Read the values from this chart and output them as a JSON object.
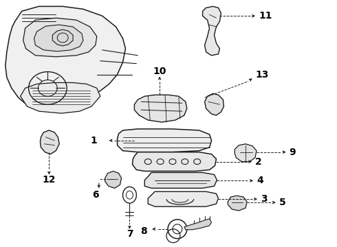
{
  "bg_color": "#ffffff",
  "line_color": "#1a1a1a",
  "fig_width": 4.9,
  "fig_height": 3.6,
  "dpi": 100,
  "label_fontsize": 10,
  "label_fontweight": "bold"
}
